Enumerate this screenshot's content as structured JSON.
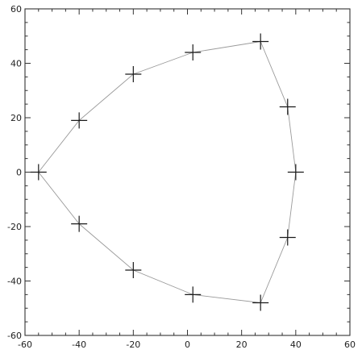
{
  "chart_data": {
    "type": "scatter",
    "title": "",
    "xlabel": "",
    "ylabel": "",
    "xlim": [
      -60,
      60
    ],
    "ylim": [
      -60,
      60
    ],
    "grid": false,
    "legend": "none",
    "marker": "plus",
    "colors": {
      "frame": "#333333",
      "line": "#9a9a9a",
      "marker": "#1a1a1a"
    },
    "x_ticks": [
      -60,
      -40,
      -20,
      0,
      20,
      40,
      60
    ],
    "y_ticks": [
      -60,
      -40,
      -20,
      0,
      20,
      40,
      60
    ],
    "x_tick_labels": [
      "-60",
      "-40",
      "-20",
      "0",
      "20",
      "40",
      "60"
    ],
    "y_tick_labels": [
      "-60",
      "-40",
      "-20",
      "0",
      "20",
      "40",
      "60"
    ],
    "series": [
      {
        "x": [
          2,
          27,
          37,
          40,
          37,
          27
        ],
        "y": [
          -45,
          -48,
          -24,
          0,
          24,
          48
        ]
      },
      {
        "x": [
          27,
          2,
          -20,
          -40,
          -55,
          -40,
          -20,
          2
        ],
        "y": [
          48,
          44,
          36,
          19,
          0,
          -19,
          -36,
          -45
        ]
      }
    ],
    "points": [
      {
        "x": -55,
        "y": 0
      },
      {
        "x": -40,
        "y": 19
      },
      {
        "x": -20,
        "y": 36
      },
      {
        "x": 2,
        "y": 44
      },
      {
        "x": 27,
        "y": 48
      },
      {
        "x": 37,
        "y": 24
      },
      {
        "x": 40,
        "y": 0
      },
      {
        "x": 37,
        "y": -24
      },
      {
        "x": 27,
        "y": -48
      },
      {
        "x": 2,
        "y": -45
      },
      {
        "x": -20,
        "y": -36
      },
      {
        "x": -40,
        "y": -19
      }
    ]
  }
}
